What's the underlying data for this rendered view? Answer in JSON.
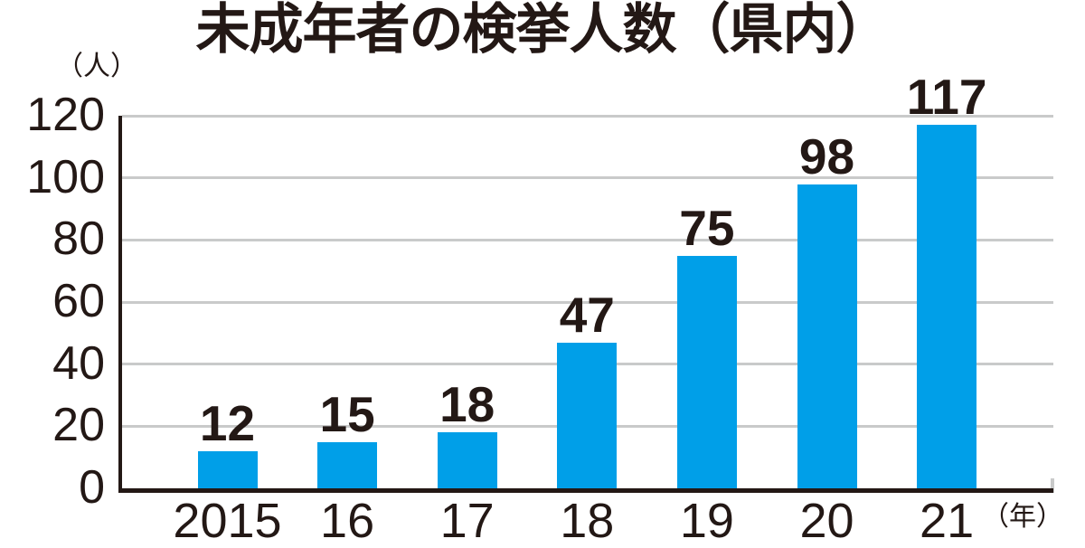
{
  "chart_data": {
    "type": "bar",
    "title": "未成年者の検挙人数（県内）",
    "y_axis_unit": "（人）",
    "x_axis_unit": "（年）",
    "categories": [
      "2015",
      "16",
      "17",
      "18",
      "19",
      "20",
      "21"
    ],
    "values": [
      12,
      15,
      18,
      47,
      75,
      98,
      117
    ],
    "ylim": [
      0,
      120
    ],
    "yticks": [
      0,
      20,
      40,
      60,
      80,
      100,
      120
    ],
    "grid": "horizontal",
    "legend": "none",
    "colors": {
      "bar": "#009FE8",
      "grid": "#C9CACA",
      "axis": "#231815",
      "text": "#231815",
      "background": "#FFFFFF"
    }
  }
}
